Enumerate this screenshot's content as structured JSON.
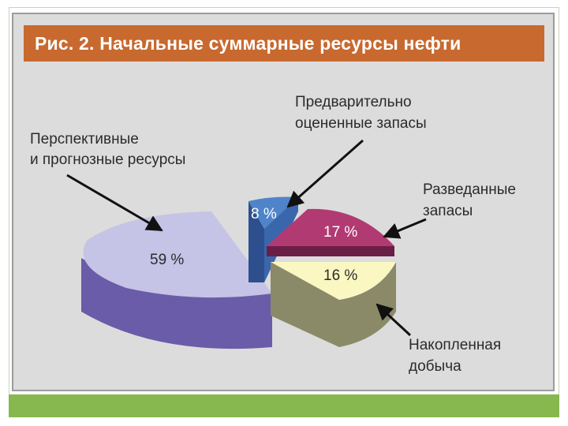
{
  "title": "Рис. 2. Начальные суммарные ресурсы нефти",
  "chart_data": {
    "type": "pie",
    "title": "Рис. 2. Начальные суммарные ресурсы нефти",
    "slices": [
      {
        "label_lines": [
          "Перспективные",
          "и прогнозные ресурсы"
        ],
        "value": 59,
        "value_label": "59 %",
        "top_color": "#c5c3e6",
        "side_color": "#6a5ca8"
      },
      {
        "label_lines": [
          "Предварительно",
          "оцененные запасы"
        ],
        "value": 8,
        "value_label": "8 %",
        "top_color": "#4f84c9",
        "side_color": "#2d4f8e"
      },
      {
        "label_lines": [
          "Разведанные",
          "запасы"
        ],
        "value": 17,
        "value_label": "17 %",
        "top_color": "#b23a72",
        "side_color": "#6b1e45"
      },
      {
        "label_lines": [
          "Накопленная",
          "добыча"
        ],
        "value": 16,
        "value_label": "16 %",
        "top_color": "#fbf7c2",
        "side_color": "#8b8a68"
      }
    ]
  }
}
